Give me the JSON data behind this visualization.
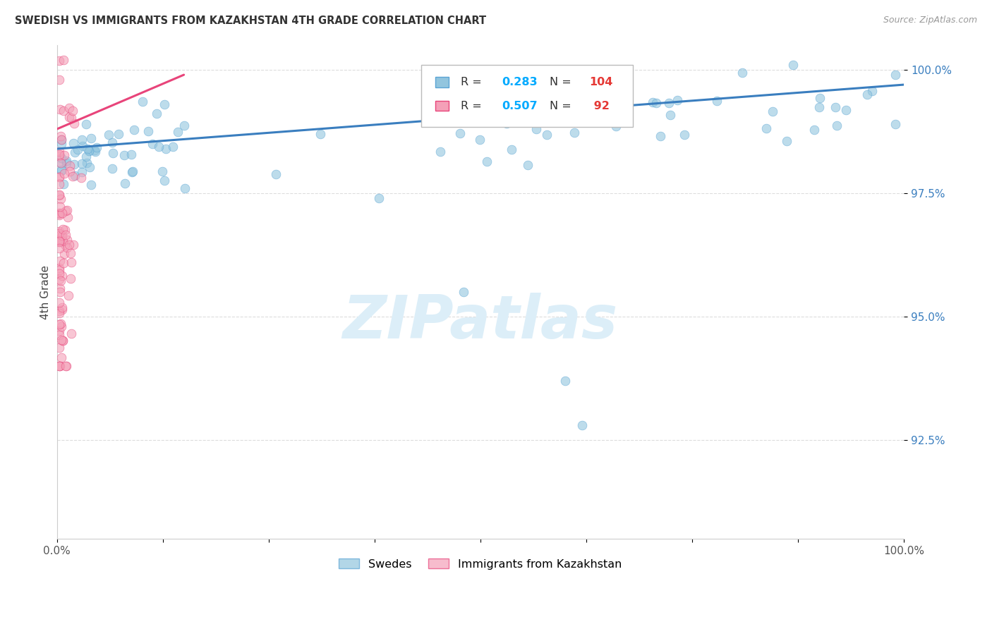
{
  "title": "SWEDISH VS IMMIGRANTS FROM KAZAKHSTAN 4TH GRADE CORRELATION CHART",
  "source": "Source: ZipAtlas.com",
  "ylabel": "4th Grade",
  "xlim": [
    0.0,
    1.0
  ],
  "ylim": [
    0.905,
    1.005
  ],
  "yticks": [
    0.925,
    0.95,
    0.975,
    1.0
  ],
  "ytick_labels": [
    "92.5%",
    "95.0%",
    "97.5%",
    "100.0%"
  ],
  "blue_color": "#92c5de",
  "blue_edge_color": "#5ba4d4",
  "pink_color": "#f4a0b8",
  "pink_edge_color": "#e8447a",
  "line_color_blue": "#3a7ebf",
  "line_color_pink": "#e8447a",
  "legend_label_blue": "Swedes",
  "legend_label_pink": "Immigrants from Kazakhstan",
  "R_blue": 0.283,
  "N_blue": 104,
  "R_pink": 0.507,
  "N_pink": 92,
  "R_blue_str": "0.283",
  "N_blue_str": "104",
  "R_pink_str": "0.507",
  "N_pink_str": " 92",
  "legend_color_RN": "#00aaff",
  "legend_color_N_val": "#e53935",
  "watermark_text": "ZIPatlas",
  "watermark_color": "#dceef8",
  "background_color": "#ffffff",
  "grid_color": "#dddddd",
  "ytick_color": "#3a7ebf",
  "title_color": "#333333",
  "source_color": "#999999"
}
